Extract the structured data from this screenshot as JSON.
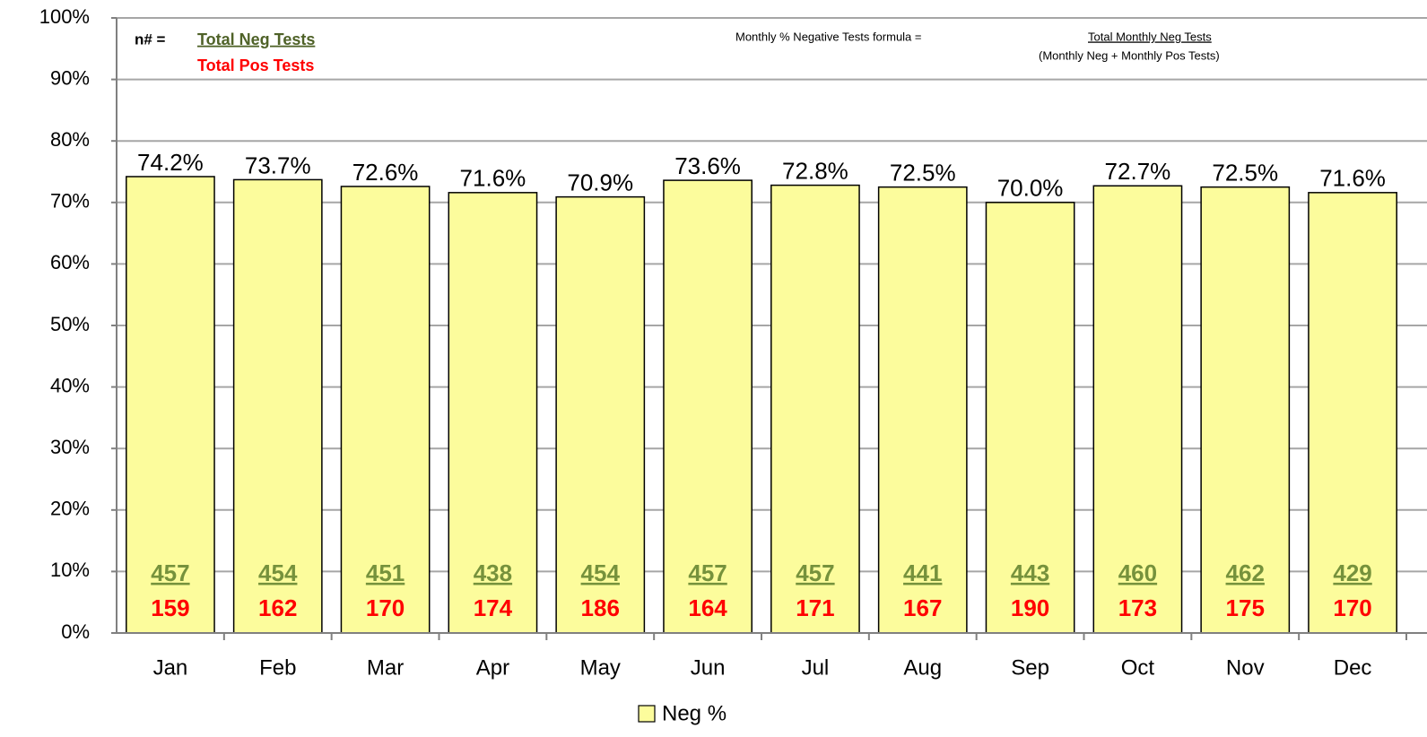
{
  "chart_data": {
    "type": "bar",
    "categories": [
      "Jan",
      "Feb",
      "Mar",
      "Apr",
      "May",
      "Jun",
      "Jul",
      "Aug",
      "Sep",
      "Oct",
      "Nov",
      "Dec"
    ],
    "series": [
      {
        "name": "Neg %",
        "color": "#fcfc9c",
        "values": [
          74.2,
          73.7,
          72.6,
          71.6,
          70.9,
          73.6,
          72.8,
          72.5,
          70.0,
          72.7,
          72.5,
          71.6
        ],
        "value_labels": [
          "74.2%",
          "73.7%",
          "72.6%",
          "71.6%",
          "70.9%",
          "73.6%",
          "72.8%",
          "72.5%",
          "70.0%",
          "72.7%",
          "72.5%",
          "71.6%"
        ]
      }
    ],
    "neg_tests": [
      457,
      454,
      451,
      438,
      454,
      457,
      457,
      441,
      443,
      460,
      462,
      429
    ],
    "pos_tests": [
      159,
      162,
      170,
      174,
      186,
      164,
      171,
      167,
      190,
      173,
      175,
      170
    ],
    "annotations": {
      "n_label": "n# =",
      "neg_label": "Total Neg Tests",
      "pos_label": "Total Pos Tests",
      "formula_label": "Monthly % Negative Tests formula =",
      "formula_numerator": "Total Monthly Neg Tests",
      "formula_denominator": "(Monthly Neg + Monthly Pos Tests)"
    },
    "ylim": [
      0,
      100
    ],
    "yticks": [
      {
        "value": 0,
        "label": "0%"
      },
      {
        "value": 10,
        "label": "10%"
      },
      {
        "value": 20,
        "label": "20%"
      },
      {
        "value": 30,
        "label": "30%"
      },
      {
        "value": 40,
        "label": "40%"
      },
      {
        "value": 50,
        "label": "50%"
      },
      {
        "value": 60,
        "label": "60%"
      },
      {
        "value": 70,
        "label": "70%"
      },
      {
        "value": 80,
        "label": "80%"
      },
      {
        "value": 90,
        "label": "90%"
      },
      {
        "value": 100,
        "label": "100%"
      }
    ],
    "grid": true,
    "legend": "bottom"
  }
}
